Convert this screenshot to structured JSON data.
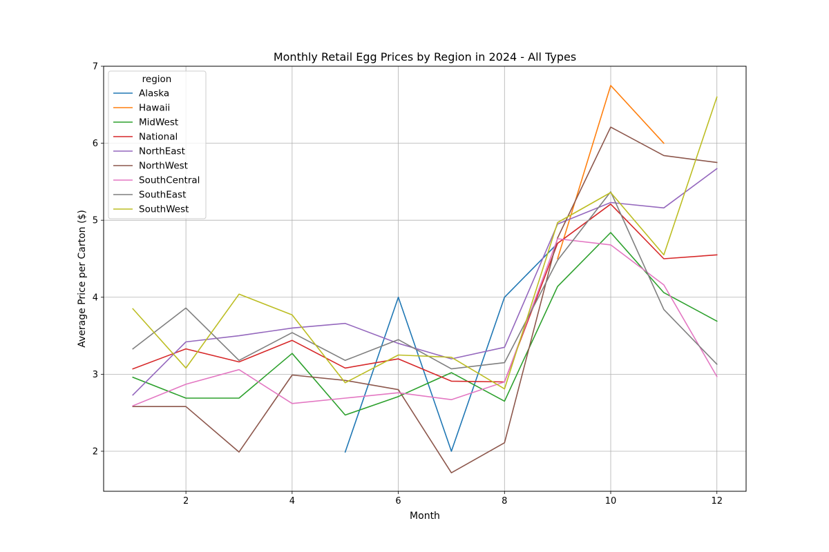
{
  "chart_data": {
    "type": "line",
    "title": "Monthly Retail Egg Prices by Region in 2024 - All Types",
    "xlabel": "Month",
    "ylabel": "Average Price per Carton ($)",
    "xlim": [
      0.45,
      12.55
    ],
    "ylim": [
      1.48,
      7.0
    ],
    "xticks": [
      2,
      4,
      6,
      8,
      10,
      12
    ],
    "yticks": [
      2,
      3,
      4,
      5,
      6,
      7
    ],
    "grid": true,
    "legend": {
      "title": "region",
      "placement": "top-left"
    },
    "series": [
      {
        "name": "Alaska",
        "color": "#1f77b4",
        "x": [
          5,
          6,
          7,
          8,
          9,
          10
        ],
        "y": [
          1.99,
          4.0,
          2.0,
          4.0,
          4.7,
          null
        ]
      },
      {
        "name": "Hawaii",
        "color": "#ff7f0e",
        "x": [
          9,
          10,
          11
        ],
        "y": [
          4.5,
          6.75,
          6.0
        ]
      },
      {
        "name": "MidWest",
        "color": "#2ca02c",
        "x": [
          1,
          2,
          3,
          4,
          5,
          6,
          7,
          8,
          9,
          10,
          11,
          12
        ],
        "y": [
          2.96,
          2.69,
          2.69,
          3.27,
          2.47,
          2.71,
          3.02,
          2.65,
          4.14,
          4.84,
          4.06,
          3.69
        ]
      },
      {
        "name": "National",
        "color": "#d62728",
        "x": [
          1,
          2,
          3,
          4,
          5,
          6,
          7,
          8,
          9,
          10,
          11,
          12
        ],
        "y": [
          3.07,
          3.33,
          3.16,
          3.44,
          3.08,
          3.2,
          2.91,
          2.9,
          4.7,
          5.21,
          4.5,
          4.55
        ]
      },
      {
        "name": "NorthEast",
        "color": "#9467bd",
        "x": [
          1,
          2,
          3,
          4,
          5,
          6,
          7,
          8,
          9,
          10,
          11,
          12
        ],
        "y": [
          2.73,
          3.42,
          3.5,
          3.6,
          3.66,
          3.4,
          3.2,
          3.35,
          4.95,
          5.23,
          5.16,
          5.67
        ]
      },
      {
        "name": "NorthWest",
        "color": "#8c564b",
        "x": [
          1,
          2,
          3,
          4,
          5,
          6,
          7,
          8,
          9,
          10,
          11,
          12
        ],
        "y": [
          2.58,
          2.58,
          1.99,
          2.99,
          2.92,
          2.8,
          1.72,
          2.11,
          4.77,
          6.21,
          5.84,
          5.75
        ]
      },
      {
        "name": "SouthCentral",
        "color": "#e377c2",
        "x": [
          1,
          2,
          3,
          4,
          5,
          6,
          7,
          8,
          9,
          10,
          11,
          12
        ],
        "y": [
          2.59,
          2.87,
          3.06,
          2.62,
          2.69,
          2.76,
          2.67,
          2.9,
          4.76,
          4.68,
          4.16,
          2.97
        ]
      },
      {
        "name": "SouthEast",
        "color": "#7f7f7f",
        "x": [
          1,
          2,
          3,
          4,
          5,
          6,
          7,
          8,
          9,
          10,
          11,
          12
        ],
        "y": [
          3.33,
          3.86,
          3.18,
          3.54,
          3.18,
          3.45,
          3.07,
          3.15,
          4.48,
          5.37,
          3.84,
          3.13
        ]
      },
      {
        "name": "SouthWest",
        "color": "#bcbd22",
        "x": [
          1,
          2,
          3,
          4,
          5,
          6,
          7,
          8,
          9,
          10,
          11,
          12
        ],
        "y": [
          3.85,
          3.08,
          4.04,
          3.77,
          2.89,
          3.25,
          3.22,
          2.81,
          4.97,
          5.36,
          4.55,
          6.6
        ]
      }
    ]
  }
}
